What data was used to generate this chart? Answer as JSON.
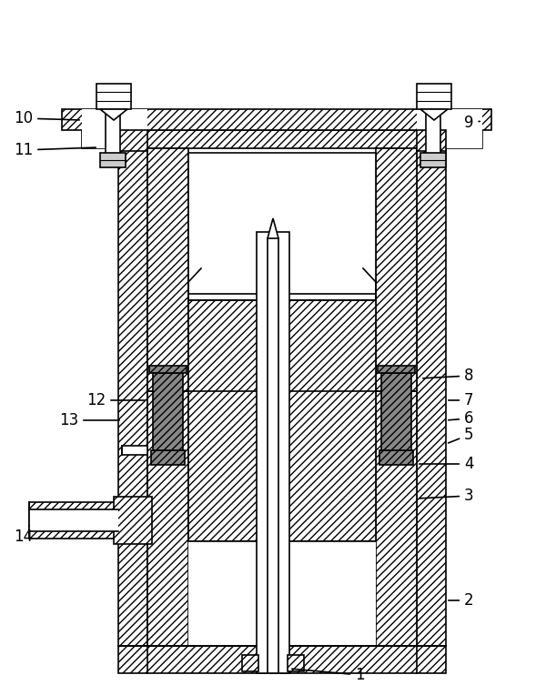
{
  "bg_color": "#ffffff",
  "line_color": "#000000",
  "label_color": "#000000",
  "line_width": 1.2,
  "label_fontsize": 12,
  "hatch": "////",
  "gray_hatch": "////",
  "gray_color": "#aaaaaa"
}
